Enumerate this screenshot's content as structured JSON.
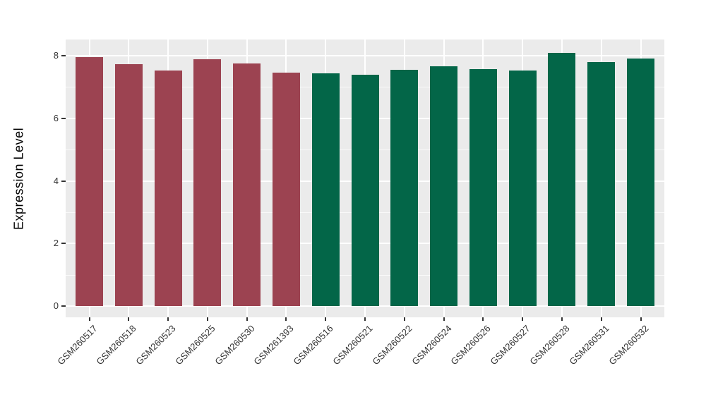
{
  "figure": {
    "background": "#FFFFFF"
  },
  "panel": {
    "background": "#EBEBEB",
    "gridline_color": "#FFFFFF"
  },
  "colors": {
    "group_infected": "#9C4351",
    "group_control": "#036648",
    "tick_text": "#333333",
    "axis_title_text": "#000000"
  },
  "chart_data": {
    "type": "bar",
    "title": "",
    "xlabel": "",
    "ylabel": "Expression Level",
    "ylim": [
      0,
      8.5
    ],
    "yticks": [
      0,
      2,
      4,
      6,
      8
    ],
    "yticks_minor": [
      1,
      3,
      5,
      7
    ],
    "grid": "white major and minor horizontal lines, white vertical lines at bar centers, on light gray panel",
    "legend_position": "none",
    "x_label_rotation_deg": 45,
    "categories": [
      "GSM260517",
      "GSM260518",
      "GSM260523",
      "GSM260525",
      "GSM260530",
      "GSM261393",
      "GSM260516",
      "GSM260521",
      "GSM260522",
      "GSM260524",
      "GSM260526",
      "GSM260527",
      "GSM260528",
      "GSM260531",
      "GSM260532"
    ],
    "values": [
      7.96,
      7.74,
      7.53,
      7.89,
      7.76,
      7.47,
      7.44,
      7.4,
      7.56,
      7.67,
      7.58,
      7.53,
      8.1,
      7.79,
      7.91
    ],
    "groups": [
      "A",
      "A",
      "A",
      "A",
      "A",
      "A",
      "B",
      "B",
      "B",
      "B",
      "B",
      "B",
      "B",
      "B",
      "B"
    ],
    "group_colors": {
      "A": "#9C4351",
      "B": "#036648"
    }
  }
}
